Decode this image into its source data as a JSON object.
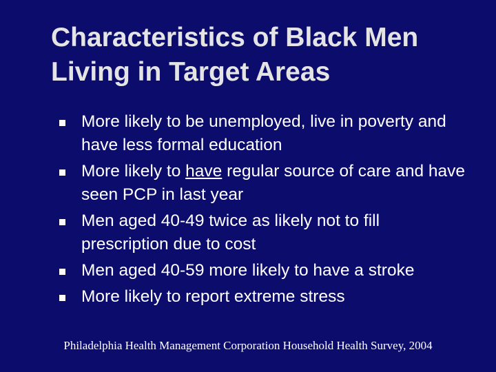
{
  "title": "Characteristics of Black Men Living in Target Areas",
  "bullets": [
    "More likely to be unemployed, live in poverty and have less formal education",
    {
      "before": "More likely to ",
      "underlined": "have",
      "after": " regular source of care and have seen PCP in last year"
    },
    "Men aged 40-49 twice as likely not to fill prescription due to cost",
    "Men aged 40-59 more likely to have a stroke",
    "More likely to report extreme stress"
  ],
  "footer": "Philadelphia Health Management Corporation Household Health Survey, 2004"
}
